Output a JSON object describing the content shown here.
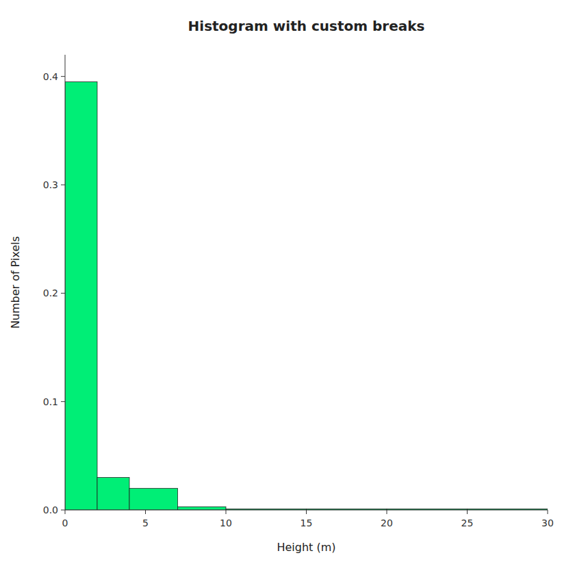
{
  "chart_data": {
    "type": "histogram",
    "title": "Histogram with custom breaks",
    "x_label": "Height (m)",
    "y_label": "Number of Pixels",
    "bins": [
      0,
      2,
      4,
      7,
      10,
      15,
      20,
      25,
      30
    ],
    "values": [
      0.395,
      0.03,
      0.02,
      0.003,
      0.001,
      0.001,
      0.001,
      0.001
    ],
    "color": "#00ee76",
    "xlim": [
      0,
      30
    ],
    "ylim": [
      0,
      0.42
    ],
    "xticks": [
      0,
      5,
      10,
      15,
      20,
      25,
      30
    ],
    "yticks": [
      {
        "value": 0.0,
        "label": "0.0"
      },
      0.1,
      0.2,
      0.3,
      0.4
    ],
    "grid": false
  }
}
